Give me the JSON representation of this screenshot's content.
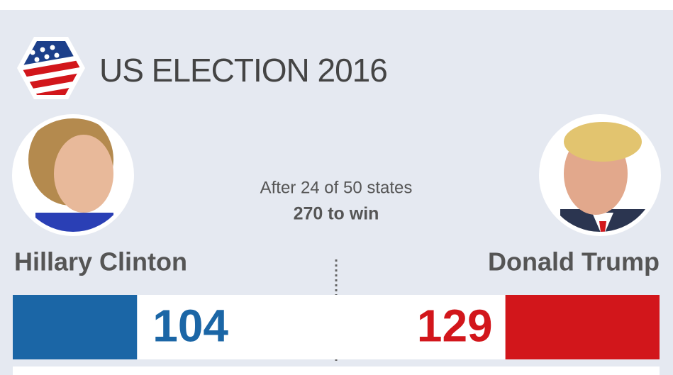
{
  "header": {
    "title": "US ELECTION 2016"
  },
  "status": {
    "line1": "After 24 of 50 states",
    "line2": "270 to win"
  },
  "candidates": [
    {
      "name": "Hillary Clinton",
      "votes": 104,
      "color": "#1b66a6"
    },
    {
      "name": "Donald Trump",
      "votes": 129,
      "color": "#d2161b"
    }
  ]
}
